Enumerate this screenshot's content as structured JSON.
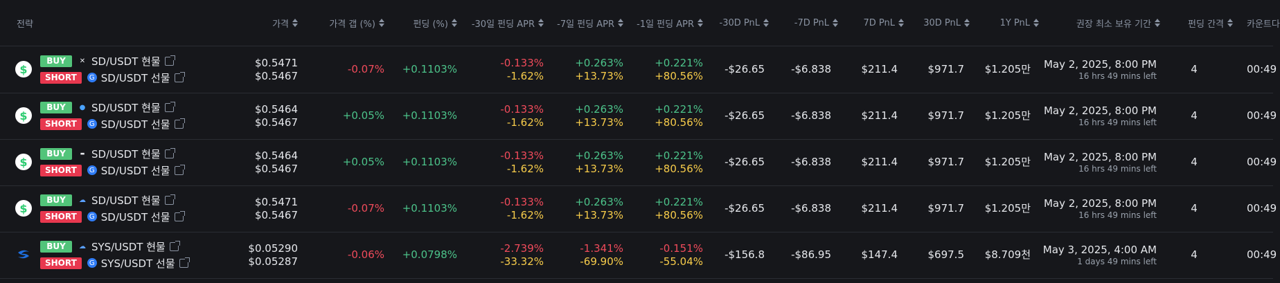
{
  "headers": [
    "전략",
    "가격",
    "가격 갭 (%)",
    "펀딩 (%)",
    "-30일 펀딩 APR",
    "-7일 펀딩 APR",
    "-1일 펀딩 APR",
    "-30D PnL",
    "-7D PnL",
    "7D PnL",
    "30D PnL",
    "1Y PnL",
    "권장 최소 보유 기간",
    "펀딩 간격",
    "카운트다"
  ],
  "rows": [
    {
      "coin": "sd-coin-icon",
      "buy": {
        "label": "BUY",
        "exchange": "mexc-icon",
        "pair": "SD/USDT 현물"
      },
      "short": {
        "label": "SHORT",
        "exchange": "gate-icon",
        "pair": "SD/USDT 선물"
      },
      "price1": "$0.5471",
      "price2": "$0.5467",
      "gap": "-0.07%",
      "gap_color": "red",
      "funding": "+0.1103%",
      "apr30_1": "-0.133%",
      "apr30_2": "-1.62%",
      "apr7_1": "+0.263%",
      "apr7_2": "+13.73%",
      "apr1_1": "+0.221%",
      "apr1_2": "+80.56%",
      "pnl_m30": "-$26.65",
      "pnl_m7": "-$6.838",
      "pnl_7": "$211.4",
      "pnl_30": "$971.7",
      "pnl_1y": "$1.205만",
      "hold_date": "May 2, 2025, 8:00 PM",
      "hold_left": "16 hrs 49 mins left",
      "interval": "4",
      "count": "00:49"
    },
    {
      "coin": "sd-coin-icon",
      "buy": {
        "label": "BUY",
        "exchange": "drop-icon",
        "pair": "SD/USDT 현물"
      },
      "short": {
        "label": "SHORT",
        "exchange": "gate-icon",
        "pair": "SD/USDT 선물"
      },
      "price1": "$0.5464",
      "price2": "$0.5467",
      "gap": "+0.05%",
      "gap_color": "green",
      "funding": "+0.1103%",
      "apr30_1": "-0.133%",
      "apr30_2": "-1.62%",
      "apr7_1": "+0.263%",
      "apr7_2": "+13.73%",
      "apr1_1": "+0.221%",
      "apr1_2": "+80.56%",
      "pnl_m30": "-$26.65",
      "pnl_m7": "-$6.838",
      "pnl_7": "$211.4",
      "pnl_30": "$971.7",
      "pnl_1y": "$1.205만",
      "hold_date": "May 2, 2025, 8:00 PM",
      "hold_left": "16 hrs 49 mins left",
      "interval": "4",
      "count": "00:49"
    },
    {
      "coin": "sd-coin-icon",
      "buy": {
        "label": "BUY",
        "exchange": "bybit-icon",
        "pair": "SD/USDT 현물"
      },
      "short": {
        "label": "SHORT",
        "exchange": "gate-icon",
        "pair": "SD/USDT 선물"
      },
      "price1": "$0.5464",
      "price2": "$0.5467",
      "gap": "+0.05%",
      "gap_color": "green",
      "funding": "+0.1103%",
      "apr30_1": "-0.133%",
      "apr30_2": "-1.62%",
      "apr7_1": "+0.263%",
      "apr7_2": "+13.73%",
      "apr1_1": "+0.221%",
      "apr1_2": "+80.56%",
      "pnl_m30": "-$26.65",
      "pnl_m7": "-$6.838",
      "pnl_7": "$211.4",
      "pnl_30": "$971.7",
      "pnl_1y": "$1.205만",
      "hold_date": "May 2, 2025, 8:00 PM",
      "hold_left": "16 hrs 49 mins left",
      "interval": "4",
      "count": "00:49"
    },
    {
      "coin": "sd-coin-icon",
      "buy": {
        "label": "BUY",
        "exchange": "cloud-icon",
        "pair": "SD/USDT 현물"
      },
      "short": {
        "label": "SHORT",
        "exchange": "gate-icon",
        "pair": "SD/USDT 선물"
      },
      "price1": "$0.5471",
      "price2": "$0.5467",
      "gap": "-0.07%",
      "gap_color": "red",
      "funding": "+0.1103%",
      "apr30_1": "-0.133%",
      "apr30_2": "-1.62%",
      "apr7_1": "+0.263%",
      "apr7_2": "+13.73%",
      "apr1_1": "+0.221%",
      "apr1_2": "+80.56%",
      "pnl_m30": "-$26.65",
      "pnl_m7": "-$6.838",
      "pnl_7": "$211.4",
      "pnl_30": "$971.7",
      "pnl_1y": "$1.205만",
      "hold_date": "May 2, 2025, 8:00 PM",
      "hold_left": "16 hrs 49 mins left",
      "interval": "4",
      "count": "00:49"
    },
    {
      "coin": "sys-coin-icon",
      "buy": {
        "label": "BUY",
        "exchange": "cloud-icon",
        "pair": "SYS/USDT 현물"
      },
      "short": {
        "label": "SHORT",
        "exchange": "gate-icon",
        "pair": "SYS/USDT 선물"
      },
      "price1": "$0.05290",
      "price2": "$0.05287",
      "gap": "-0.06%",
      "gap_color": "red",
      "funding": "+0.0798%",
      "apr30_1": "-2.739%",
      "apr30_2": "-33.32%",
      "apr7_1": "-1.341%",
      "apr7_2": "-69.90%",
      "apr1_1": "-0.151%",
      "apr1_2": "-55.04%",
      "pnl_m30": "-$156.8",
      "pnl_m7": "-$86.95",
      "pnl_7": "$147.4",
      "pnl_30": "$697.5",
      "pnl_1y": "$8.709천",
      "hold_date": "May 3, 2025, 4:00 AM",
      "hold_left": "1 days 49 mins left",
      "interval": "4",
      "count": "00:49"
    }
  ]
}
